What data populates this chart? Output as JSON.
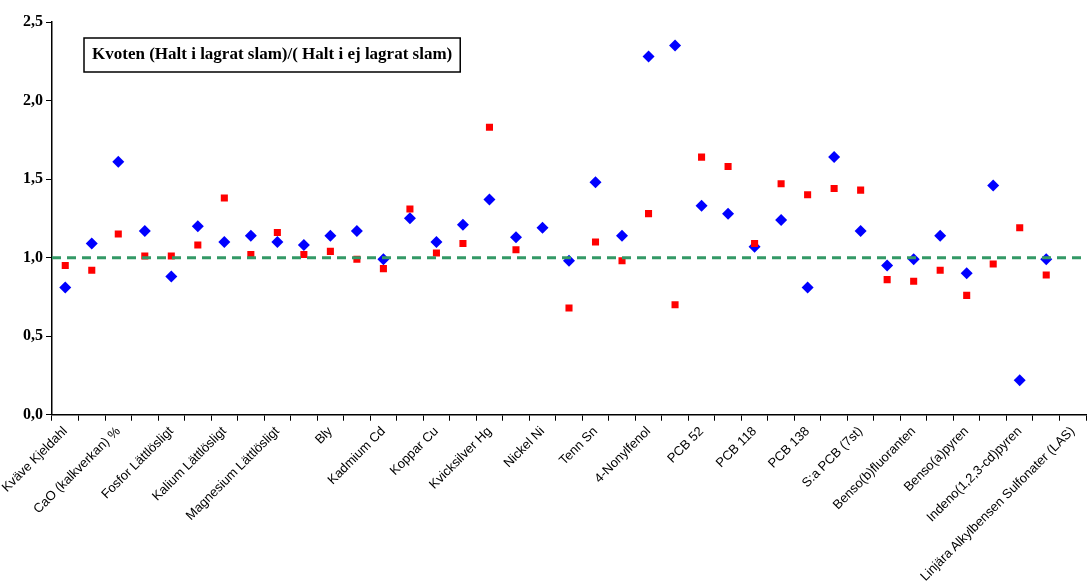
{
  "chart_data": {
    "type": "scatter",
    "title": "Kvoten (Halt i lagrat slam)/( Halt i ej lagrat slam)",
    "categories": [
      "Kväve Kjeldahl",
      null,
      "CaO (kalkverkan) %",
      null,
      "Fosfor Lättlösligt",
      null,
      "Kalium Lättlösligt",
      null,
      "Magnesium Lättlösligt",
      null,
      "Bly",
      null,
      "Kadmium Cd",
      null,
      "Koppar Cu",
      null,
      "Kvicksilver Hg",
      null,
      "Nickel Ni",
      null,
      "Tenn Sn",
      null,
      "4-Nonylfenol",
      null,
      "PCB 52",
      null,
      "PCB 118",
      null,
      "PCB 138",
      null,
      "S:a PCB (7st)",
      null,
      "Benso(b)fluoranten",
      null,
      "Benso(a)pyren",
      null,
      "Indeno(1,2,3-cd)pyren",
      null,
      "Linjära Alkylbensen Sulfonater (LAS)"
    ],
    "series": [
      {
        "color": "#0000ff",
        "marker": "diamond",
        "values": [
          0.81,
          1.09,
          1.61,
          1.17,
          0.88,
          1.2,
          1.1,
          1.14,
          1.1,
          1.08,
          1.14,
          1.17,
          0.99,
          1.25,
          1.1,
          1.21,
          1.37,
          1.13,
          1.19,
          0.98,
          1.48,
          1.14,
          2.28,
          2.35,
          1.33,
          1.28,
          1.07,
          1.24,
          0.81,
          1.64,
          1.17,
          0.95,
          0.99,
          1.14,
          0.9,
          1.46,
          0.22,
          0.99,
          null
        ]
      },
      {
        "color": "#ff0000",
        "marker": "square",
        "values": [
          0.95,
          0.92,
          1.15,
          1.01,
          1.01,
          1.08,
          1.38,
          1.02,
          1.16,
          1.02,
          1.04,
          0.99,
          0.93,
          1.31,
          1.03,
          1.09,
          1.83,
          1.05,
          null,
          0.68,
          1.1,
          0.98,
          1.28,
          0.7,
          1.64,
          1.58,
          1.09,
          1.47,
          1.4,
          1.44,
          1.43,
          0.86,
          0.85,
          0.92,
          0.76,
          0.96,
          1.19,
          0.89,
          null
        ]
      }
    ],
    "ylim": [
      0,
      2.5
    ],
    "yticks": [
      {
        "value": 0,
        "label": "0,0"
      },
      {
        "value": 0.5,
        "label": "0,5"
      },
      {
        "value": 1,
        "label": "1,0"
      },
      {
        "value": 1.5,
        "label": "1,5"
      },
      {
        "value": 2,
        "label": "2,0"
      },
      {
        "value": 2.5,
        "label": "2,5"
      }
    ],
    "ref_lines": [
      {
        "axis": "y",
        "value": 1,
        "color": "#339966",
        "line_style": "dashed"
      }
    ],
    "grid": false,
    "legend": false
  }
}
